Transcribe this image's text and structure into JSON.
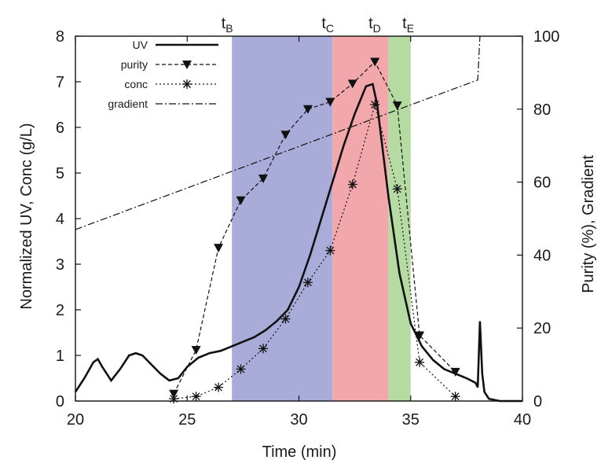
{
  "chart_data": {
    "type": "line",
    "xlabel": "Time (min)",
    "ylabel_left": "Normalized UV, Conc (g/L)",
    "ylabel_right": "Purity (%), Gradient",
    "xlim": [
      20,
      40
    ],
    "ylim_left": [
      0,
      8
    ],
    "ylim_right": [
      0,
      100
    ],
    "x_ticks": [
      20,
      25,
      30,
      35,
      40
    ],
    "y_ticks_left": [
      0,
      1,
      2,
      3,
      4,
      5,
      6,
      7,
      8
    ],
    "y_ticks_right": [
      0,
      20,
      40,
      60,
      80,
      100
    ],
    "grid": false,
    "legend_position": "top-left",
    "bands": [
      {
        "label": "t",
        "sub": "B",
        "start": 27.0,
        "end": 31.5,
        "color": "#a9acd8"
      },
      {
        "label": "t",
        "sub": "C",
        "start": 31.5,
        "end": 34.0,
        "color": "#f2a8ab"
      },
      {
        "label": "t",
        "sub": "D",
        "start": 34.0,
        "end": 35.0,
        "color": "#b5dba3"
      }
    ],
    "band_markers": [
      {
        "label": "t",
        "sub": "B",
        "x": 27.0
      },
      {
        "label": "t",
        "sub": "C",
        "x": 31.5
      },
      {
        "label": "t",
        "sub": "D",
        "x": 33.6
      },
      {
        "label": "t",
        "sub": "E",
        "x": 35.1
      }
    ],
    "series": [
      {
        "name": "UV",
        "axis": "left",
        "style": "solid",
        "x": [
          20.0,
          20.4,
          20.8,
          21.0,
          21.2,
          21.6,
          22.0,
          22.4,
          22.7,
          23.0,
          23.4,
          23.8,
          24.2,
          24.6,
          25.0,
          25.5,
          26.0,
          26.5,
          27.0,
          27.5,
          28.0,
          28.5,
          29.0,
          29.5,
          30.0,
          30.5,
          31.0,
          31.5,
          32.0,
          32.5,
          33.0,
          33.3,
          33.5,
          34.0,
          34.5,
          35.0,
          35.5,
          36.0,
          36.5,
          37.0,
          37.5,
          37.9,
          38.0,
          38.1,
          38.2,
          38.3,
          38.5,
          39.0,
          40.0
        ],
        "values": [
          0.2,
          0.5,
          0.85,
          0.92,
          0.75,
          0.45,
          0.7,
          1.0,
          1.05,
          1.0,
          0.8,
          0.6,
          0.45,
          0.5,
          0.75,
          0.95,
          1.05,
          1.1,
          1.2,
          1.3,
          1.4,
          1.55,
          1.75,
          2.0,
          2.5,
          3.2,
          4.0,
          4.8,
          5.6,
          6.3,
          6.9,
          6.95,
          6.5,
          4.5,
          2.8,
          1.7,
          1.2,
          0.9,
          0.7,
          0.6,
          0.5,
          0.4,
          0.3,
          1.75,
          0.6,
          0.2,
          0.05,
          0.0,
          0.0
        ]
      },
      {
        "name": "purity",
        "axis": "right",
        "style": "dashed",
        "marker": "down-triangle",
        "x": [
          24.4,
          25.4,
          26.4,
          27.4,
          28.4,
          29.4,
          30.4,
          31.4,
          32.4,
          33.4,
          34.4,
          35.4,
          37.0
        ],
        "values": [
          2,
          14,
          42,
          55,
          61,
          73,
          80,
          82,
          87,
          93,
          81,
          18,
          8
        ]
      },
      {
        "name": "conc",
        "axis": "left",
        "style": "dotted",
        "marker": "asterisk",
        "x": [
          24.4,
          25.4,
          26.4,
          27.4,
          28.4,
          29.4,
          30.4,
          31.4,
          32.4,
          33.4,
          34.4,
          35.4,
          37.0
        ],
        "values": [
          0.05,
          0.1,
          0.3,
          0.7,
          1.15,
          1.8,
          2.6,
          3.3,
          4.75,
          6.5,
          4.65,
          0.85,
          0.1
        ]
      },
      {
        "name": "gradient",
        "axis": "right",
        "style": "dash-dot",
        "x": [
          20,
          38,
          38.1
        ],
        "values": [
          47,
          88,
          100
        ]
      }
    ]
  }
}
